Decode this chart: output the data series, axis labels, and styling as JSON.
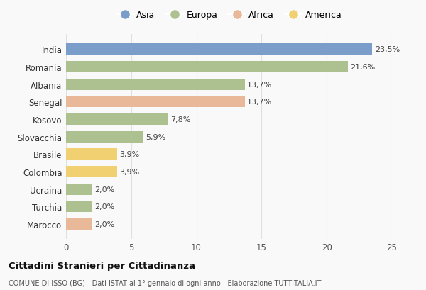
{
  "countries": [
    "India",
    "Romania",
    "Albania",
    "Senegal",
    "Kosovo",
    "Slovacchia",
    "Brasile",
    "Colombia",
    "Ucraina",
    "Turchia",
    "Marocco"
  ],
  "values": [
    23.5,
    21.6,
    13.7,
    13.7,
    7.8,
    5.9,
    3.9,
    3.9,
    2.0,
    2.0,
    2.0
  ],
  "labels": [
    "23,5%",
    "21,6%",
    "13,7%",
    "13,7%",
    "7,8%",
    "5,9%",
    "3,9%",
    "3,9%",
    "2,0%",
    "2,0%",
    "2,0%"
  ],
  "continents": [
    "Asia",
    "Europa",
    "Europa",
    "Africa",
    "Europa",
    "Europa",
    "America",
    "America",
    "Europa",
    "Europa",
    "Africa"
  ],
  "colors": {
    "Asia": "#7b9dc9",
    "Europa": "#adc190",
    "Africa": "#e8b898",
    "America": "#f0d070"
  },
  "legend_order": [
    "Asia",
    "Europa",
    "Africa",
    "America"
  ],
  "xlim": [
    0,
    25
  ],
  "xticks": [
    0,
    5,
    10,
    15,
    20,
    25
  ],
  "title": "Cittadini Stranieri per Cittadinanza",
  "subtitle": "COMUNE DI ISSO (BG) - Dati ISTAT al 1° gennaio di ogni anno - Elaborazione TUTTITALIA.IT",
  "bg_color": "#f9f9f9",
  "grid_color": "#e0e0e0"
}
